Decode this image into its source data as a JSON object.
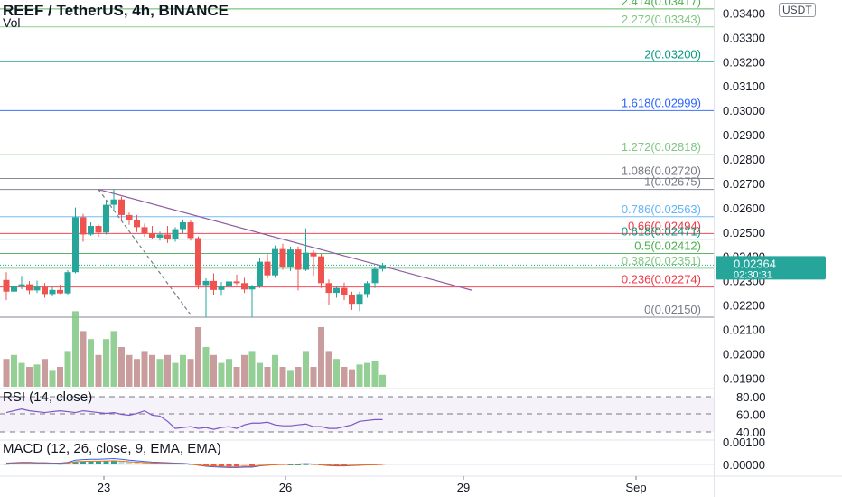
{
  "header": {
    "title": "REEF / TetherUS, 4h, BINANCE",
    "volume_label": "Vol",
    "currency_badge": "USDT"
  },
  "price_axis": {
    "labels": [
      "0.03400",
      "0.03300",
      "0.03200",
      "0.03100",
      "0.03000",
      "0.02900",
      "0.02800",
      "0.02700",
      "0.02600",
      "0.02500",
      "0.02400",
      "0.02300",
      "0.02200",
      "0.02100",
      "0.02000",
      "0.01900"
    ],
    "current_price": "0.02364",
    "countdown": "02:30:31",
    "current_color": "#26a69a"
  },
  "time_axis": {
    "labels": [
      "23",
      "26",
      "29",
      "Sep"
    ]
  },
  "fib_levels": [
    {
      "label": "2.414(0.03417)",
      "price": 0.03417,
      "color": "#4caf50"
    },
    {
      "label": "2.272(0.03343)",
      "price": 0.03343,
      "color": "#81c784"
    },
    {
      "label": "2(0.03200)",
      "price": 0.032,
      "color": "#089981"
    },
    {
      "label": "1.618(0.02999)",
      "price": 0.02999,
      "color": "#2962ff"
    },
    {
      "label": "1.272(0.02818)",
      "price": 0.02818,
      "color": "#81c784"
    },
    {
      "label": "1.086(0.02720)",
      "price": 0.0272,
      "color": "#787b86"
    },
    {
      "label": "1(0.02675)",
      "price": 0.02675,
      "color": "#787b86"
    },
    {
      "label": "0.786(0.02563)",
      "price": 0.02563,
      "color": "#64b5f6"
    },
    {
      "label": "0.66(0.02494)",
      "price": 0.02494,
      "color": "#f23645"
    },
    {
      "label": "0.618(0.02471)",
      "price": 0.02471,
      "color": "#089981"
    },
    {
      "label": "0.5(0.02412)",
      "price": 0.02412,
      "color": "#4caf50"
    },
    {
      "label": "0.382(0.02351)",
      "price": 0.02351,
      "color": "#81c784"
    },
    {
      "label": "0.236(0.02274)",
      "price": 0.02274,
      "color": "#f23645"
    },
    {
      "label": "0(0.02150)",
      "price": 0.0215,
      "color": "#787b86"
    }
  ],
  "rsi": {
    "label": "RSI (14, close)",
    "axis_labels": [
      "80.00",
      "60.00",
      "40.00"
    ],
    "values": [
      62,
      64,
      66,
      64,
      63,
      62,
      63,
      64,
      63,
      62,
      64,
      63,
      62,
      61,
      62,
      60,
      59,
      61,
      64,
      59,
      58,
      52,
      44,
      45,
      46,
      44,
      45,
      43,
      45,
      46,
      44,
      48,
      50,
      50,
      51,
      48,
      47,
      47,
      48,
      49,
      46,
      46,
      44,
      44,
      46,
      48,
      52,
      53,
      54,
      54
    ]
  },
  "macd": {
    "label": "MACD (12, 26, close, 9, EMA, EMA)",
    "axis_labels": [
      "0.00100",
      "0.00000"
    ]
  },
  "chart_data": {
    "type": "candlestick",
    "pair": "REEF / TetherUS",
    "interval": "4h",
    "exchange": "BINANCE",
    "candles": [
      [
        0.02303,
        0.02335,
        0.0222,
        0.02255
      ],
      [
        0.02255,
        0.02295,
        0.02245,
        0.02278
      ],
      [
        0.02278,
        0.0232,
        0.02265,
        0.02285
      ],
      [
        0.02285,
        0.02298,
        0.02245,
        0.0226
      ],
      [
        0.0226,
        0.023,
        0.0225,
        0.02275
      ],
      [
        0.02275,
        0.0229,
        0.0223,
        0.02245
      ],
      [
        0.02245,
        0.0228,
        0.02235,
        0.02262
      ],
      [
        0.02262,
        0.02283,
        0.02245,
        0.02248
      ],
      [
        0.02248,
        0.02343,
        0.0224,
        0.02335
      ],
      [
        0.02335,
        0.02601,
        0.0233,
        0.02561
      ],
      [
        0.02561,
        0.02575,
        0.0246,
        0.0249
      ],
      [
        0.0249,
        0.0254,
        0.02485,
        0.02525
      ],
      [
        0.02525,
        0.0253,
        0.0248,
        0.02498
      ],
      [
        0.02498,
        0.02632,
        0.0249,
        0.02612
      ],
      [
        0.02612,
        0.02675,
        0.0259,
        0.02634
      ],
      [
        0.02634,
        0.02645,
        0.0255,
        0.0257
      ],
      [
        0.0257,
        0.0258,
        0.0253,
        0.02548
      ],
      [
        0.02548,
        0.0257,
        0.025,
        0.0252
      ],
      [
        0.0252,
        0.02535,
        0.0248,
        0.02495
      ],
      [
        0.02495,
        0.02525,
        0.0247,
        0.02477
      ],
      [
        0.02477,
        0.02502,
        0.02465,
        0.0249
      ],
      [
        0.0249,
        0.02525,
        0.02455,
        0.0247
      ],
      [
        0.0247,
        0.0252,
        0.0246,
        0.02512
      ],
      [
        0.02512,
        0.02552,
        0.02495,
        0.0254
      ],
      [
        0.0254,
        0.0255,
        0.02465,
        0.02475
      ],
      [
        0.02475,
        0.02482,
        0.02265,
        0.02282
      ],
      [
        0.02282,
        0.0231,
        0.0215,
        0.02299
      ],
      [
        0.02299,
        0.0233,
        0.0224,
        0.02262
      ],
      [
        0.02262,
        0.02295,
        0.02238,
        0.02276
      ],
      [
        0.02276,
        0.02385,
        0.02265,
        0.02297
      ],
      [
        0.02297,
        0.02325,
        0.02282,
        0.0229
      ],
      [
        0.0229,
        0.02312,
        0.0225,
        0.02264
      ],
      [
        0.02264,
        0.02283,
        0.0215,
        0.0228
      ],
      [
        0.0228,
        0.02395,
        0.0227,
        0.02378
      ],
      [
        0.02378,
        0.0241,
        0.0231,
        0.02322
      ],
      [
        0.02322,
        0.02445,
        0.02312,
        0.0243
      ],
      [
        0.0243,
        0.02452,
        0.02345,
        0.02355
      ],
      [
        0.02355,
        0.0244,
        0.0234,
        0.02428
      ],
      [
        0.02428,
        0.0244,
        0.0226,
        0.02345
      ],
      [
        0.02345,
        0.02515,
        0.0234,
        0.02415
      ],
      [
        0.02415,
        0.02425,
        0.0232,
        0.024
      ],
      [
        0.024,
        0.0241,
        0.0227,
        0.0229
      ],
      [
        0.0229,
        0.02305,
        0.022,
        0.0225
      ],
      [
        0.0225,
        0.0228,
        0.0223,
        0.0227
      ],
      [
        0.0227,
        0.02292,
        0.0222,
        0.0224
      ],
      [
        0.0224,
        0.02255,
        0.0218,
        0.02205
      ],
      [
        0.02205,
        0.02255,
        0.02175,
        0.02245
      ],
      [
        0.02245,
        0.02298,
        0.0223,
        0.0229
      ],
      [
        0.0229,
        0.02355,
        0.0227,
        0.02348
      ],
      [
        0.02348,
        0.02373,
        0.02338,
        0.02364
      ]
    ],
    "volume": [
      0.35,
      0.4,
      0.3,
      0.25,
      0.28,
      0.35,
      0.2,
      0.25,
      0.45,
      0.95,
      0.7,
      0.6,
      0.4,
      0.6,
      0.7,
      0.5,
      0.4,
      0.35,
      0.45,
      0.4,
      0.35,
      0.4,
      0.3,
      0.4,
      0.35,
      0.75,
      0.5,
      0.4,
      0.3,
      0.35,
      0.25,
      0.4,
      0.45,
      0.3,
      0.25,
      0.4,
      0.25,
      0.2,
      0.25,
      0.45,
      0.25,
      0.75,
      0.45,
      0.35,
      0.25,
      0.22,
      0.28,
      0.3,
      0.32,
      0.15
    ],
    "macd_histogram": [
      3e-05,
      4e-05,
      5e-05,
      5e-05,
      4e-05,
      4e-05,
      3e-05,
      3e-05,
      5e-05,
      0.00012,
      0.00014,
      0.00015,
      0.00015,
      0.00016,
      0.00017,
      0.00015,
      0.00012,
      0.0001,
      8e-05,
      6e-05,
      5e-05,
      4e-05,
      3e-05,
      2e-05,
      0.0,
      -4e-05,
      -7e-05,
      -9e-05,
      -0.0001,
      -0.00011,
      -0.00011,
      -0.0001,
      -0.0001,
      -6e-05,
      -4e-05,
      -2e-05,
      -1e-05,
      0.0,
      0.0,
      1e-05,
      0.0,
      -3e-05,
      -5e-05,
      -6e-05,
      -6e-05,
      -5e-05,
      -4e-05,
      -3e-05,
      -2e-05,
      -1e-05
    ],
    "price_range": [
      0.0185,
      0.035
    ]
  }
}
